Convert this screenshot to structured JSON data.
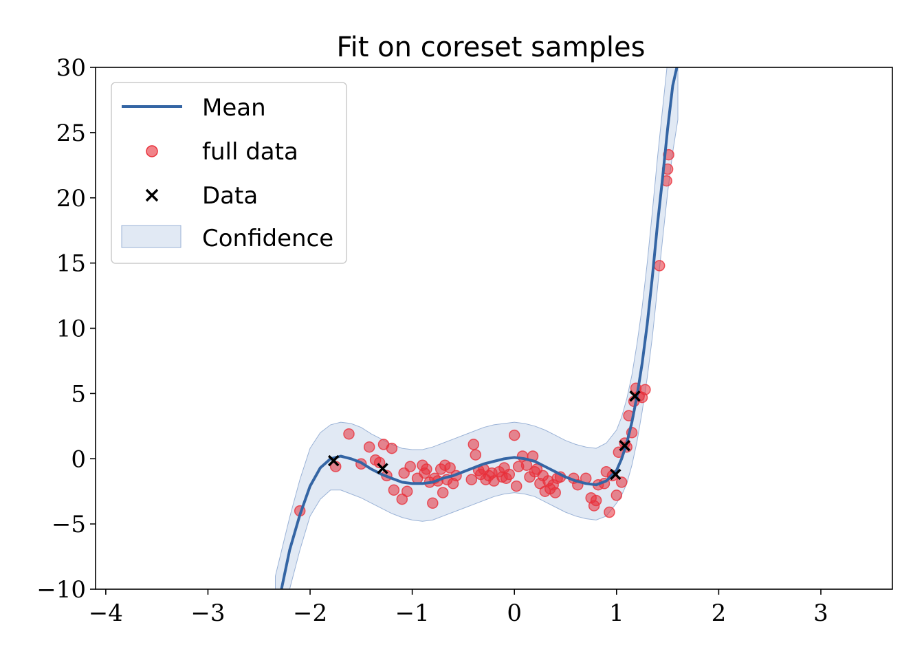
{
  "chart_data": {
    "type": "scatter",
    "title": "Fit on coreset samples",
    "xlabel": "",
    "ylabel": "",
    "xlim": [
      -4.1,
      3.7
    ],
    "ylim": [
      -10,
      30
    ],
    "xticks": [
      -4,
      -3,
      -2,
      -1,
      0,
      1,
      2,
      3
    ],
    "yticks": [
      -10,
      -5,
      0,
      5,
      10,
      15,
      20,
      25,
      30
    ],
    "xtick_labels": [
      "−4",
      "−3",
      "−2",
      "−1",
      "0",
      "1",
      "2",
      "3"
    ],
    "ytick_labels": [
      "−10",
      "−5",
      "0",
      "5",
      "10",
      "15",
      "20",
      "25",
      "30"
    ],
    "grid": false,
    "legend": {
      "placement": "top-left",
      "entries": [
        "Mean",
        "full data",
        "Data",
        "Confidence"
      ]
    },
    "colors": {
      "mean": "#3465a4",
      "full_data": "#e8303a",
      "data": "#000000",
      "confidence": "#c4d3ea"
    },
    "series": [
      {
        "name": "Mean",
        "kind": "line",
        "x": [
          -2.28,
          -2.2,
          -2.1,
          -2.0,
          -1.9,
          -1.8,
          -1.7,
          -1.6,
          -1.5,
          -1.4,
          -1.3,
          -1.2,
          -1.1,
          -1.0,
          -0.9,
          -0.8,
          -0.7,
          -0.6,
          -0.5,
          -0.4,
          -0.3,
          -0.2,
          -0.1,
          0.0,
          0.1,
          0.2,
          0.3,
          0.4,
          0.5,
          0.6,
          0.7,
          0.8,
          0.9,
          1.0,
          1.05,
          1.1,
          1.15,
          1.2,
          1.25,
          1.3,
          1.35,
          1.4,
          1.45,
          1.5,
          1.55,
          1.59
        ],
        "y": [
          -10.0,
          -7.0,
          -4.3,
          -2.1,
          -0.7,
          0.0,
          0.2,
          0.0,
          -0.3,
          -0.8,
          -1.2,
          -1.5,
          -1.8,
          -1.9,
          -1.9,
          -1.8,
          -1.5,
          -1.3,
          -1.0,
          -0.7,
          -0.4,
          -0.2,
          0.0,
          0.1,
          0.0,
          -0.2,
          -0.6,
          -1.0,
          -1.4,
          -1.7,
          -1.9,
          -2.0,
          -1.7,
          -0.9,
          0.0,
          1.2,
          2.8,
          4.8,
          7.3,
          10.3,
          13.9,
          17.9,
          21.5,
          25.3,
          28.6,
          30.0
        ]
      },
      {
        "name": "full data",
        "kind": "scatter",
        "x": [
          -2.1,
          -1.75,
          -1.62,
          -1.5,
          -1.42,
          -1.36,
          -1.32,
          -1.28,
          -1.25,
          -1.2,
          -1.18,
          -1.1,
          -1.08,
          -1.05,
          -1.02,
          -0.95,
          -0.9,
          -0.88,
          -0.86,
          -0.83,
          -0.8,
          -0.78,
          -0.75,
          -0.72,
          -0.7,
          -0.68,
          -0.66,
          -0.63,
          -0.6,
          -0.57,
          -0.42,
          -0.4,
          -0.38,
          -0.35,
          -0.33,
          -0.3,
          -0.28,
          -0.25,
          -0.22,
          -0.2,
          -0.15,
          -0.12,
          -0.1,
          -0.08,
          -0.05,
          0.0,
          0.02,
          0.04,
          0.08,
          0.12,
          0.15,
          0.18,
          0.2,
          0.22,
          0.25,
          0.28,
          0.3,
          0.33,
          0.35,
          0.38,
          0.4,
          0.42,
          0.45,
          0.58,
          0.62,
          0.7,
          0.75,
          0.78,
          0.8,
          0.82,
          0.88,
          0.9,
          0.93,
          0.96,
          1.0,
          1.02,
          1.05,
          1.08,
          1.1,
          1.12,
          1.15,
          1.17,
          1.19,
          1.22,
          1.25,
          1.28,
          1.42,
          1.49,
          1.5,
          1.51
        ],
        "y": [
          -4.0,
          -0.6,
          1.9,
          -0.4,
          0.9,
          -0.1,
          -0.3,
          1.1,
          -1.3,
          0.8,
          -2.4,
          -3.1,
          -1.1,
          -2.5,
          -0.6,
          -1.5,
          -0.5,
          -1.1,
          -0.8,
          -1.8,
          -3.4,
          -1.5,
          -1.7,
          -0.8,
          -2.6,
          -0.5,
          -1.6,
          -0.7,
          -1.9,
          -1.3,
          -1.6,
          1.1,
          0.3,
          -0.9,
          -1.2,
          -0.8,
          -1.6,
          -1.3,
          -1.1,
          -1.7,
          -1.0,
          -1.4,
          -0.7,
          -1.5,
          -1.2,
          1.8,
          -2.1,
          -0.6,
          0.2,
          -0.5,
          -1.4,
          0.2,
          -1.0,
          -0.8,
          -1.9,
          -1.3,
          -2.5,
          -1.7,
          -2.3,
          -2.0,
          -2.6,
          -1.5,
          -1.4,
          -1.5,
          -2.0,
          -1.5,
          -3.0,
          -3.6,
          -3.2,
          -2.0,
          -1.9,
          -1.0,
          -4.1,
          -1.3,
          -2.8,
          0.5,
          -1.8,
          1.2,
          0.9,
          3.3,
          2.0,
          4.4,
          5.4,
          4.8,
          4.7,
          5.3,
          14.8,
          21.3,
          22.2,
          23.3
        ]
      },
      {
        "name": "Data",
        "kind": "scatter",
        "x": [
          -1.77,
          -1.29,
          0.99,
          1.08,
          1.18
        ],
        "y": [
          -0.15,
          -0.75,
          -1.2,
          1.0,
          4.8
        ]
      },
      {
        "name": "Confidence",
        "kind": "area",
        "x": [
          -2.34,
          -2.2,
          -2.1,
          -2.0,
          -1.9,
          -1.8,
          -1.7,
          -1.6,
          -1.5,
          -1.4,
          -1.3,
          -1.2,
          -1.1,
          -1.0,
          -0.9,
          -0.8,
          -0.7,
          -0.6,
          -0.5,
          -0.4,
          -0.3,
          -0.2,
          -0.1,
          0.0,
          0.1,
          0.2,
          0.3,
          0.4,
          0.5,
          0.6,
          0.7,
          0.8,
          0.9,
          1.0,
          1.05,
          1.1,
          1.15,
          1.2,
          1.25,
          1.3,
          1.35,
          1.4,
          1.45,
          1.5,
          1.55,
          1.6
        ],
        "upper": [
          -9.0,
          -4.5,
          -1.6,
          0.8,
          2.0,
          2.6,
          2.8,
          2.7,
          2.4,
          1.9,
          1.5,
          1.1,
          0.8,
          0.7,
          0.7,
          0.9,
          1.2,
          1.5,
          1.8,
          2.1,
          2.4,
          2.6,
          2.7,
          2.8,
          2.7,
          2.5,
          2.2,
          1.8,
          1.4,
          1.1,
          0.9,
          0.8,
          1.2,
          2.2,
          3.2,
          4.6,
          6.4,
          8.8,
          11.6,
          15.0,
          18.9,
          23.0,
          26.8,
          30.5,
          34.0,
          36.0
        ],
        "lower": [
          -12.0,
          -10.0,
          -7.0,
          -4.4,
          -3.1,
          -2.4,
          -2.4,
          -2.7,
          -3.0,
          -3.4,
          -3.8,
          -4.2,
          -4.5,
          -4.7,
          -4.8,
          -4.7,
          -4.4,
          -4.1,
          -3.8,
          -3.5,
          -3.2,
          -2.9,
          -2.7,
          -2.6,
          -2.7,
          -2.9,
          -3.3,
          -3.7,
          -4.1,
          -4.4,
          -4.6,
          -4.7,
          -4.4,
          -3.4,
          -2.8,
          -1.9,
          -0.5,
          1.3,
          3.6,
          6.2,
          9.3,
          13.0,
          16.8,
          20.4,
          23.5,
          26.0
        ]
      }
    ]
  }
}
